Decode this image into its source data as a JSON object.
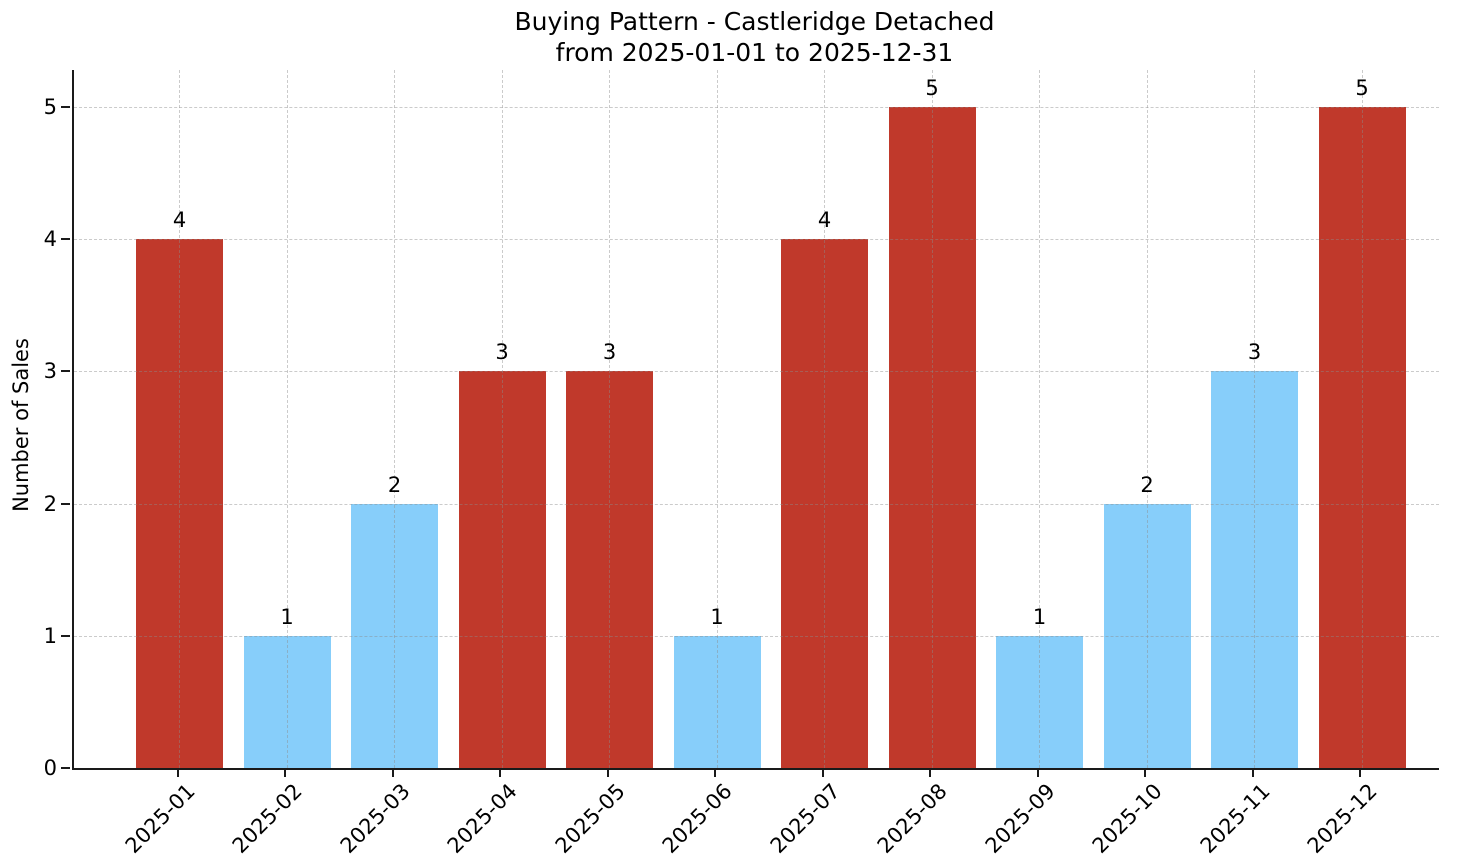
{
  "figure": {
    "title_line1": "Buying Pattern - Castleridge Detached",
    "title_line2": "from 2025-01-01 to 2025-12-31"
  },
  "chart_data": {
    "type": "bar",
    "title": "Buying Pattern - Castleridge Detached\nfrom 2025-01-01 to 2025-12-31",
    "xlabel": "",
    "ylabel": "Number of Sales",
    "categories": [
      "2025-01",
      "2025-02",
      "2025-03",
      "2025-04",
      "2025-05",
      "2025-06",
      "2025-07",
      "2025-08",
      "2025-09",
      "2025-10",
      "2025-11",
      "2025-12"
    ],
    "values": [
      4,
      1,
      2,
      3,
      3,
      1,
      4,
      5,
      1,
      2,
      3,
      5
    ],
    "bar_colors": [
      "#c0392b",
      "#87cefa",
      "#87cefa",
      "#c0392b",
      "#c0392b",
      "#87cefa",
      "#c0392b",
      "#c0392b",
      "#87cefa",
      "#87cefa",
      "#87cefa",
      "#c0392b"
    ],
    "yticks": [
      0,
      1,
      2,
      3,
      4,
      5
    ],
    "ylim": [
      0,
      5.28
    ],
    "grid": true,
    "grid_style": "dashed",
    "legend": "none",
    "x_tick_rotation_deg": 45,
    "value_labels_shown": true,
    "colors": {
      "red_bar": "#c0392b",
      "blue_bar": "#87cefa",
      "grid": "#d0d0d0",
      "axis": "#1a1a1a",
      "text": "#000000",
      "background": "#ffffff"
    }
  }
}
